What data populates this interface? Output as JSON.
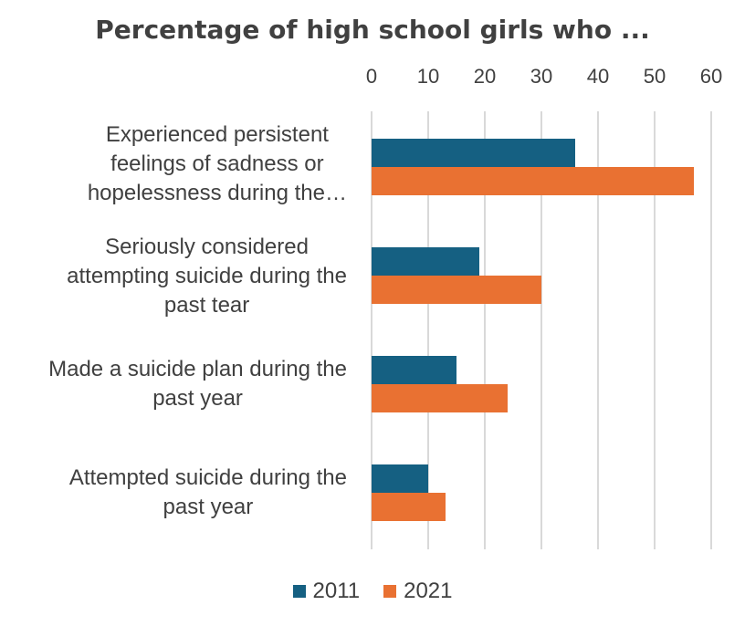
{
  "chart_data": {
    "type": "bar",
    "orientation": "horizontal",
    "title": "Percentage of high school girls who ...",
    "xlim": [
      0,
      60
    ],
    "xticks": [
      "0",
      "10",
      "20",
      "30",
      "40",
      "50",
      "60"
    ],
    "categories": [
      [
        "Experienced persistent",
        "feelings of sadness or",
        "hopelessness during the…"
      ],
      [
        "Seriously considered",
        "attempting suicide during the",
        "past tear"
      ],
      [
        "Made a suicide plan during the",
        "past year"
      ],
      [
        "Attempted suicide during the",
        "past year"
      ]
    ],
    "series": [
      {
        "name": "2011",
        "color": "#156082",
        "values": [
          36,
          19,
          15,
          10
        ]
      },
      {
        "name": "2021",
        "color": "#E97132",
        "values": [
          57,
          30,
          24,
          13
        ]
      }
    ],
    "grid": true,
    "axis_position": "top",
    "legend": "bottom"
  },
  "legend": {
    "label_2011": "2011",
    "label_2021": "2021"
  }
}
